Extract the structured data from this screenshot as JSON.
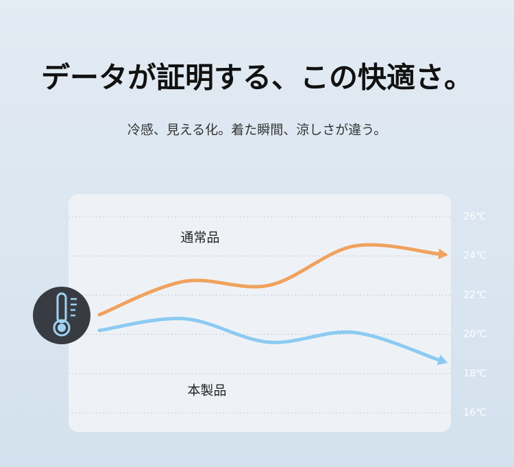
{
  "chart_data": {
    "type": "line",
    "title": "データが証明する、この快適さ。",
    "subtitle": "冷感、見える化。着た瞬間、涼しさが違う。",
    "categories": [
      null,
      null,
      null,
      null,
      null
    ],
    "series": [
      {
        "name": "通常品",
        "color": "#f0a25e",
        "values": [
          21.0,
          22.7,
          22.5,
          24.5,
          24.1
        ]
      },
      {
        "name": "本製品",
        "color": "#8ccaf2",
        "values": [
          20.2,
          20.8,
          19.6,
          20.1,
          18.7
        ]
      }
    ],
    "ylim": [
      16,
      26
    ],
    "yticks": [
      {
        "value": 16,
        "label": "16℃"
      },
      {
        "value": 18,
        "label": "18℃"
      },
      {
        "value": 20,
        "label": "20℃"
      },
      {
        "value": 22,
        "label": "22℃"
      },
      {
        "value": 24,
        "label": "24℃"
      },
      {
        "value": 26,
        "label": "26℃"
      }
    ],
    "grid": true
  }
}
